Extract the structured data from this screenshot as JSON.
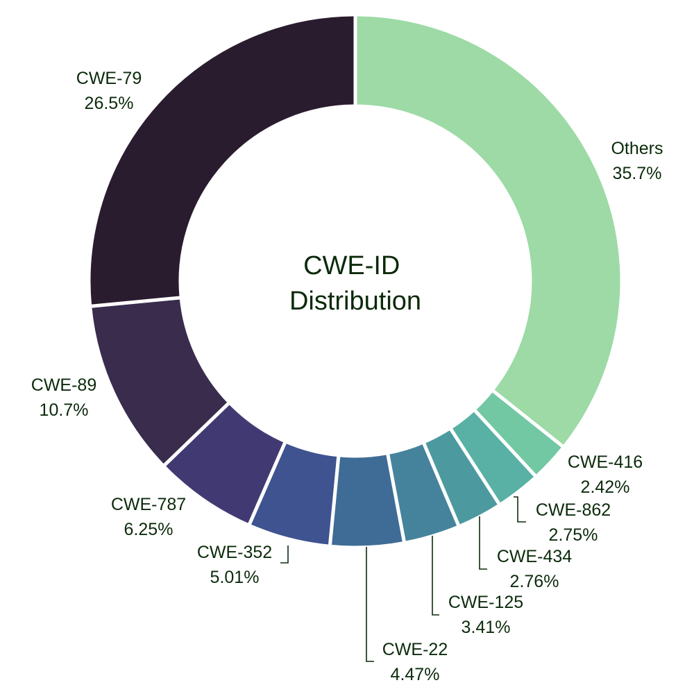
{
  "chart_data": {
    "type": "pie",
    "variant": "donut",
    "title": "CWE-ID Distribution",
    "title_lines": [
      "CWE-ID",
      "Distribution"
    ],
    "start": "top",
    "direction": "clockwise",
    "slices": [
      {
        "label": "Others",
        "value": 35.7,
        "value_label": "35.7%",
        "color": "#9ddaa6"
      },
      {
        "label": "CWE-416",
        "value": 2.42,
        "value_label": "2.42%",
        "color": "#72c8a3"
      },
      {
        "label": "CWE-862",
        "value": 2.75,
        "value_label": "2.75%",
        "color": "#58b1a4"
      },
      {
        "label": "CWE-434",
        "value": 2.76,
        "value_label": "2.76%",
        "color": "#4c9aa0"
      },
      {
        "label": "CWE-125",
        "value": 3.41,
        "value_label": "3.41%",
        "color": "#45839d"
      },
      {
        "label": "CWE-22",
        "value": 4.47,
        "value_label": "4.47%",
        "color": "#3e6c96"
      },
      {
        "label": "CWE-352",
        "value": 5.01,
        "value_label": "5.01%",
        "color": "#3e538f"
      },
      {
        "label": "CWE-787",
        "value": 6.25,
        "value_label": "6.25%",
        "color": "#413a72"
      },
      {
        "label": "CWE-89",
        "value": 10.7,
        "value_label": "10.7%",
        "color": "#392c4d"
      },
      {
        "label": "CWE-79",
        "value": 26.5,
        "value_label": "26.5%",
        "color": "#2a1c2f"
      }
    ]
  }
}
